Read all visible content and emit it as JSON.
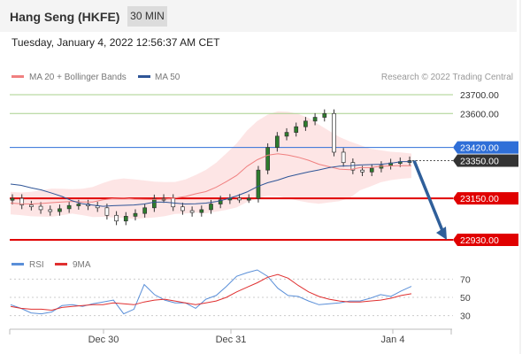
{
  "header": {
    "title": "Hang Seng (HKFE)",
    "timeframe": "30 MIN",
    "datetime": "Tuesday, January 4, 2022 12:56:37 AM CET"
  },
  "legend": [
    {
      "label": "MA 20 + Bollinger Bands",
      "color": "#f08080"
    },
    {
      "label": "MA 50",
      "color": "#2f5597"
    }
  ],
  "credit": "Research © 2022 Trading Central",
  "colors": {
    "resistance_line": "#a8d08d",
    "pivot_line": "#2f6fd8",
    "support_line": "#e00000",
    "current_price_tag": "#333333",
    "arrow": "#2f5f9a",
    "candle": "#2d7d2d",
    "bollinger_fill": "#fde0e0",
    "rsi_line": "#5a8fd8",
    "rsi_ma_line": "#e03030"
  },
  "chart_data": [
    {
      "type": "line",
      "title": "",
      "y_axis_range": [
        22930,
        23700
      ],
      "levels": [
        {
          "value": 23700.0,
          "label": "23700.00",
          "role": "resistance"
        },
        {
          "value": 23600.0,
          "label": "23600.00",
          "role": "resistance"
        },
        {
          "value": 23420.0,
          "label": "23420.00",
          "role": "pivot"
        },
        {
          "value": 23350.0,
          "label": "23350.00",
          "role": "current price"
        },
        {
          "value": 23150.0,
          "label": "23150.00",
          "role": "support"
        },
        {
          "value": 22930.0,
          "label": "22930.00",
          "role": "support"
        }
      ],
      "x_tick_labels": [
        "Dec 30",
        "Dec 31",
        "Jan 4"
      ],
      "forecast_arrow": {
        "from": 23350,
        "to": 22930
      },
      "series": [
        {
          "name": "MA 20 + Bollinger Bands",
          "values": [
            23125,
            23121,
            23120,
            23123,
            23127,
            23131,
            23134,
            23131,
            23131,
            23142,
            23149,
            23151,
            23146,
            23145,
            23144,
            23146,
            23152,
            23160,
            23174,
            23186,
            23209,
            23239,
            23272,
            23320,
            23355,
            23379,
            23387,
            23380,
            23368,
            23352,
            23331,
            23318,
            23305,
            23302,
            23313,
            23313,
            23320,
            23322,
            23324,
            23323
          ]
        },
        {
          "name": "MA 50",
          "values": [
            23226,
            23219,
            23206,
            23195,
            23178,
            23160,
            23137,
            23121,
            23114,
            23108,
            23111,
            23113,
            23115,
            23120,
            23130,
            23130,
            23125,
            23120,
            23121,
            23125,
            23133,
            23146,
            23163,
            23184,
            23212,
            23233,
            23247,
            23265,
            23278,
            23290,
            23301,
            23313,
            23321,
            23323,
            23327,
            23329,
            23331,
            23336,
            23345,
            23345
          ]
        }
      ]
    },
    {
      "type": "line",
      "title": "",
      "legend": [
        {
          "label": "RSI",
          "color": "#5a8fd8"
        },
        {
          "label": "9MA",
          "color": "#e03030"
        }
      ],
      "y_tick_labels": [
        "70",
        "50",
        "30"
      ],
      "ylim": [
        20,
        80
      ],
      "series": [
        {
          "name": "RSI",
          "values": [
            42,
            38,
            33,
            32,
            34,
            41,
            42,
            40,
            43,
            45,
            47,
            32,
            37,
            64,
            53,
            47,
            44,
            44,
            38,
            48,
            52,
            62,
            73,
            77,
            80,
            73,
            60,
            52,
            51,
            46,
            42,
            43,
            44,
            46,
            46,
            49,
            53,
            51,
            57,
            62
          ]
        },
        {
          "name": "9MA",
          "values": [
            40,
            38,
            37,
            37,
            36,
            39,
            40,
            41,
            42,
            42,
            44,
            43,
            42,
            45,
            47,
            48,
            46,
            44,
            42,
            44,
            46,
            50,
            56,
            61,
            66,
            72,
            75,
            71,
            63,
            56,
            51,
            48,
            46,
            45,
            45,
            46,
            47,
            49,
            52,
            54
          ]
        }
      ]
    }
  ]
}
